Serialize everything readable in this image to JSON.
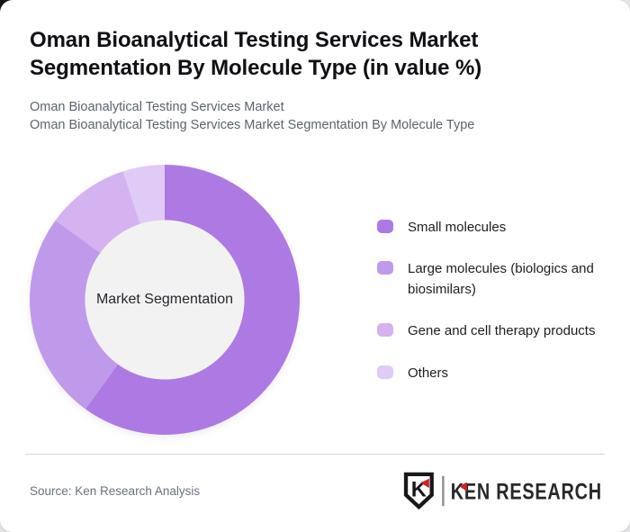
{
  "page": {
    "title_lines": [
      "Oman Bioanalytical Testing Services Market",
      "Segmentation By Molecule Type (in value %)"
    ],
    "subtitle_lines": [
      "Oman Bioanalytical Testing Services Market",
      "Oman Bioanalytical Testing Services Market Segmentation By Molecule Type"
    ]
  },
  "chart_data": {
    "type": "pie",
    "variant": "donut",
    "title": "Oman Bioanalytical Testing Services Market Segmentation By Molecule Type (in value %)",
    "center_label": "Market Segmentation",
    "categories": [
      "Small molecules",
      "Large molecules (biologics and biosimilars)",
      "Gene and cell therapy products",
      "Others"
    ],
    "values": [
      60,
      25,
      10,
      5
    ],
    "colors": [
      "#ad7ae3",
      "#c09aea",
      "#d4b3f0",
      "#e0cbf6"
    ],
    "unit": "value %",
    "start_angle_deg": 0,
    "direction": "clockwise",
    "inner_radius_ratio": 0.59,
    "hole_color": "#f2f2f3",
    "legend_position": "right"
  },
  "footer": {
    "source_label": "Source: Ken Research Analysis",
    "logo": {
      "monogram": "K",
      "text": "KEN RESEARCH",
      "accent_color": "#c9252c",
      "text_color": "#26282a",
      "outline_color": "#17181a",
      "separator_color": "#8d8d90"
    }
  }
}
